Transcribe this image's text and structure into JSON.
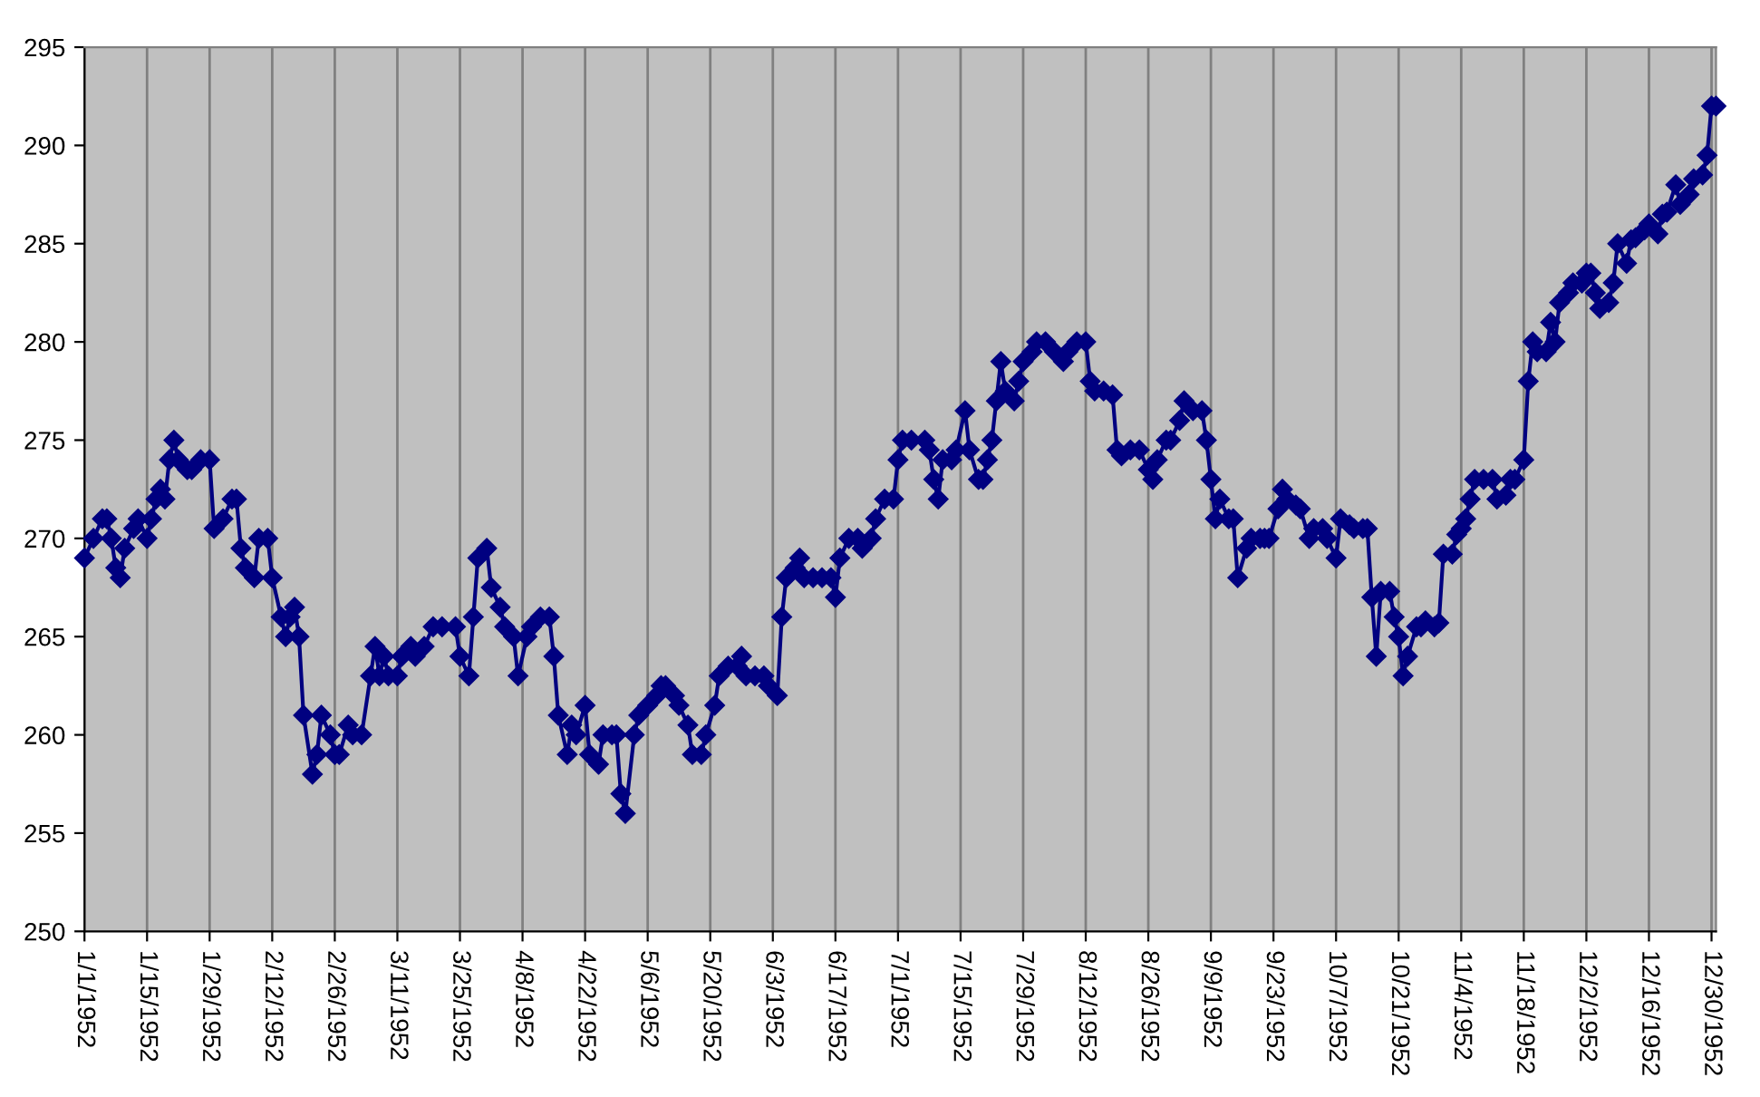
{
  "chart_data": {
    "type": "line",
    "x": [
      "1952-01-01",
      "1952-01-03",
      "1952-01-05",
      "1952-01-06",
      "1952-01-07",
      "1952-01-08",
      "1952-01-09",
      "1952-01-10",
      "1952-01-12",
      "1952-01-13",
      "1952-01-15",
      "1952-01-16",
      "1952-01-17",
      "1952-01-18",
      "1952-01-19",
      "1952-01-20",
      "1952-01-21",
      "1952-01-22",
      "1952-01-24",
      "1952-01-25",
      "1952-01-27",
      "1952-01-29",
      "1952-01-30",
      "1952-02-01",
      "1952-02-03",
      "1952-02-04",
      "1952-02-05",
      "1952-02-06",
      "1952-02-08",
      "1952-02-09",
      "1952-02-11",
      "1952-02-12",
      "1952-02-14",
      "1952-02-15",
      "1952-02-16",
      "1952-02-17",
      "1952-02-18",
      "1952-02-19",
      "1952-02-21",
      "1952-02-22",
      "1952-02-23",
      "1952-02-25",
      "1952-02-26",
      "1952-02-27",
      "1952-02-29",
      "1952-03-01",
      "1952-03-03",
      "1952-03-05",
      "1952-03-06",
      "1952-03-07",
      "1952-03-08",
      "1952-03-09",
      "1952-03-11",
      "1952-03-12",
      "1952-03-14",
      "1952-03-15",
      "1952-03-17",
      "1952-03-19",
      "1952-03-21",
      "1952-03-24",
      "1952-03-25",
      "1952-03-27",
      "1952-03-28",
      "1952-03-29",
      "1952-03-31",
      "1952-04-01",
      "1952-04-03",
      "1952-04-04",
      "1952-04-06",
      "1952-04-07",
      "1952-04-09",
      "1952-04-10",
      "1952-04-12",
      "1952-04-14",
      "1952-04-15",
      "1952-04-16",
      "1952-04-18",
      "1952-04-19",
      "1952-04-20",
      "1952-04-22",
      "1952-04-23",
      "1952-04-25",
      "1952-04-26",
      "1952-04-28",
      "1952-04-29",
      "1952-04-30",
      "1952-05-01",
      "1952-05-03",
      "1952-05-04",
      "1952-05-06",
      "1952-05-08",
      "1952-05-09",
      "1952-05-10",
      "1952-05-12",
      "1952-05-13",
      "1952-05-15",
      "1952-05-16",
      "1952-05-18",
      "1952-05-19",
      "1952-05-21",
      "1952-05-22",
      "1952-05-24",
      "1952-05-26",
      "1952-05-27",
      "1952-05-28",
      "1952-05-30",
      "1952-06-01",
      "1952-06-02",
      "1952-06-04",
      "1952-06-05",
      "1952-06-06",
      "1952-06-08",
      "1952-06-09",
      "1952-06-10",
      "1952-06-12",
      "1952-06-14",
      "1952-06-16",
      "1952-06-17",
      "1952-06-18",
      "1952-06-20",
      "1952-06-22",
      "1952-06-23",
      "1952-06-25",
      "1952-06-26",
      "1952-06-28",
      "1952-06-30",
      "1952-07-01",
      "1952-07-02",
      "1952-07-04",
      "1952-07-07",
      "1952-07-08",
      "1952-07-09",
      "1952-07-10",
      "1952-07-11",
      "1952-07-13",
      "1952-07-14",
      "1952-07-16",
      "1952-07-17",
      "1952-07-19",
      "1952-07-20",
      "1952-07-21",
      "1952-07-22",
      "1952-07-23",
      "1952-07-24",
      "1952-07-25",
      "1952-07-27",
      "1952-07-28",
      "1952-07-29",
      "1952-07-31",
      "1952-08-01",
      "1952-08-03",
      "1952-08-05",
      "1952-08-07",
      "1952-08-08",
      "1952-08-10",
      "1952-08-12",
      "1952-08-13",
      "1952-08-14",
      "1952-08-16",
      "1952-08-18",
      "1952-08-19",
      "1952-08-20",
      "1952-08-22",
      "1952-08-24",
      "1952-08-26",
      "1952-08-27",
      "1952-08-28",
      "1952-08-30",
      "1952-08-31",
      "1952-09-02",
      "1952-09-03",
      "1952-09-05",
      "1952-09-07",
      "1952-09-08",
      "1952-09-09",
      "1952-09-10",
      "1952-09-11",
      "1952-09-13",
      "1952-09-14",
      "1952-09-15",
      "1952-09-17",
      "1952-09-18",
      "1952-09-20",
      "1952-09-21",
      "1952-09-22",
      "1952-09-24",
      "1952-09-25",
      "1952-09-26",
      "1952-09-28",
      "1952-09-29",
      "1952-10-01",
      "1952-10-02",
      "1952-10-04",
      "1952-10-05",
      "1952-10-07",
      "1952-10-08",
      "1952-10-10",
      "1952-10-11",
      "1952-10-13",
      "1952-10-14",
      "1952-10-15",
      "1952-10-16",
      "1952-10-17",
      "1952-10-19",
      "1952-10-20",
      "1952-10-21",
      "1952-10-22",
      "1952-10-23",
      "1952-10-25",
      "1952-10-26",
      "1952-10-27",
      "1952-10-29",
      "1952-10-30",
      "1952-10-31",
      "1952-11-02",
      "1952-11-03",
      "1952-11-04",
      "1952-11-05",
      "1952-11-06",
      "1952-11-07",
      "1952-11-09",
      "1952-11-11",
      "1952-11-12",
      "1952-11-14",
      "1952-11-15",
      "1952-11-16",
      "1952-11-18",
      "1952-11-19",
      "1952-11-20",
      "1952-11-21",
      "1952-11-23",
      "1952-11-24",
      "1952-11-25",
      "1952-11-26",
      "1952-11-28",
      "1952-11-29",
      "1952-12-01",
      "1952-12-02",
      "1952-12-03",
      "1952-12-04",
      "1952-12-05",
      "1952-12-07",
      "1952-12-08",
      "1952-12-09",
      "1952-12-11",
      "1952-12-12",
      "1952-12-13",
      "1952-12-15",
      "1952-12-16",
      "1952-12-18",
      "1952-12-19",
      "1952-12-20",
      "1952-12-22",
      "1952-12-23",
      "1952-12-25",
      "1952-12-26",
      "1952-12-28",
      "1952-12-29",
      "1952-12-30",
      "1952-12-31"
    ],
    "series": [
      {
        "color": "#000080",
        "values": [
          269,
          270,
          271,
          271,
          270,
          268.5,
          268,
          269.5,
          270.5,
          271,
          270,
          271,
          272,
          272.5,
          272,
          274,
          275,
          274,
          273.5,
          273.5,
          274,
          274,
          270.5,
          271,
          272,
          272,
          269.5,
          268.5,
          268,
          270,
          270,
          268,
          266,
          265,
          266,
          266.5,
          265,
          261,
          258,
          259,
          261,
          260,
          259,
          259,
          260.5,
          260,
          260,
          263,
          264.5,
          263,
          264,
          263,
          263,
          264,
          264.5,
          264,
          264.5,
          265.5,
          265.5,
          265.5,
          264,
          263,
          266,
          269,
          269.5,
          267.5,
          266.5,
          265.5,
          265,
          263,
          265,
          265.5,
          266,
          266,
          264,
          261,
          259,
          260.5,
          260,
          261.5,
          259,
          258.5,
          260,
          260,
          260,
          257,
          256,
          260,
          261,
          261.5,
          262,
          262.5,
          262.5,
          262,
          261.5,
          260.5,
          259,
          259,
          260,
          261.5,
          263,
          263.5,
          263.5,
          264,
          263,
          263,
          263,
          262.5,
          262,
          266,
          268,
          268.5,
          269,
          268,
          268,
          268,
          268,
          267,
          269,
          270,
          270,
          269.5,
          270,
          271,
          272,
          272,
          274,
          275,
          275,
          275,
          274.5,
          273,
          272,
          274,
          274,
          274.5,
          276.5,
          274.5,
          273,
          273,
          274,
          275,
          277,
          279,
          277.5,
          277,
          278,
          279,
          279.5,
          280,
          280,
          279.5,
          279,
          279.5,
          280,
          280,
          278,
          277.5,
          277.5,
          277.3,
          274.5,
          274.2,
          274.5,
          274.5,
          273.5,
          273,
          274,
          275,
          275,
          276,
          277,
          276.5,
          276.5,
          275,
          273,
          271,
          272,
          271,
          271,
          268,
          269.5,
          270,
          270,
          270,
          270,
          271.5,
          272.5,
          272,
          271.7,
          271.5,
          270,
          270.5,
          270.5,
          270,
          269,
          271,
          270.7,
          270.5,
          270.5,
          270.5,
          267,
          264,
          267.3,
          267.3,
          266,
          265,
          263,
          264,
          265.5,
          265.5,
          265.8,
          265.5,
          265.7,
          269.2,
          269.2,
          270.2,
          270.5,
          271,
          272,
          273,
          273,
          273,
          272,
          272.2,
          273,
          273,
          274,
          278,
          280,
          279.5,
          279.5,
          281,
          280,
          282,
          282.5,
          283,
          283,
          283.5,
          283.5,
          282.5,
          281.7,
          282,
          283,
          285,
          284,
          285.2,
          285.3,
          285.7,
          286,
          285.5,
          286.5,
          286.6,
          288,
          287,
          287.5,
          288.3,
          288.5,
          289.5,
          292,
          292
        ]
      }
    ],
    "marker": "diamond",
    "line_style": "solid",
    "grid": "x",
    "legend": false,
    "xlim": [
      "1952-01-01",
      "1952-12-31"
    ],
    "xticks": [
      {
        "value": "1952-01-01",
        "label": "1/1/1952"
      },
      {
        "value": "1952-01-15",
        "label": "1/15/1952"
      },
      {
        "value": "1952-01-29",
        "label": "1/29/1952"
      },
      {
        "value": "1952-02-12",
        "label": "2/12/1952"
      },
      {
        "value": "1952-02-26",
        "label": "2/26/1952"
      },
      {
        "value": "1952-03-11",
        "label": "3/11/1952"
      },
      {
        "value": "1952-03-25",
        "label": "3/25/1952"
      },
      {
        "value": "1952-04-08",
        "label": "4/8/1952"
      },
      {
        "value": "1952-04-22",
        "label": "4/22/1952"
      },
      {
        "value": "1952-05-06",
        "label": "5/6/1952"
      },
      {
        "value": "1952-05-20",
        "label": "5/20/1952"
      },
      {
        "value": "1952-06-03",
        "label": "6/3/1952"
      },
      {
        "value": "1952-06-17",
        "label": "6/17/1952"
      },
      {
        "value": "1952-07-01",
        "label": "7/1/1952"
      },
      {
        "value": "1952-07-15",
        "label": "7/15/1952"
      },
      {
        "value": "1952-07-29",
        "label": "7/29/1952"
      },
      {
        "value": "1952-08-12",
        "label": "8/12/1952"
      },
      {
        "value": "1952-08-26",
        "label": "8/26/1952"
      },
      {
        "value": "1952-09-09",
        "label": "9/9/1952"
      },
      {
        "value": "1952-09-23",
        "label": "9/23/1952"
      },
      {
        "value": "1952-10-07",
        "label": "10/7/1952"
      },
      {
        "value": "1952-10-21",
        "label": "10/21/1952"
      },
      {
        "value": "1952-11-04",
        "label": "11/4/1952"
      },
      {
        "value": "1952-11-18",
        "label": "11/18/1952"
      },
      {
        "value": "1952-12-02",
        "label": "12/2/1952"
      },
      {
        "value": "1952-12-16",
        "label": "12/16/1952"
      },
      {
        "value": "1952-12-30",
        "label": "12/30/1952"
      }
    ],
    "ylim": [
      250,
      295
    ],
    "yticks": [
      250,
      255,
      260,
      265,
      270,
      275,
      280,
      285,
      290,
      295
    ]
  }
}
